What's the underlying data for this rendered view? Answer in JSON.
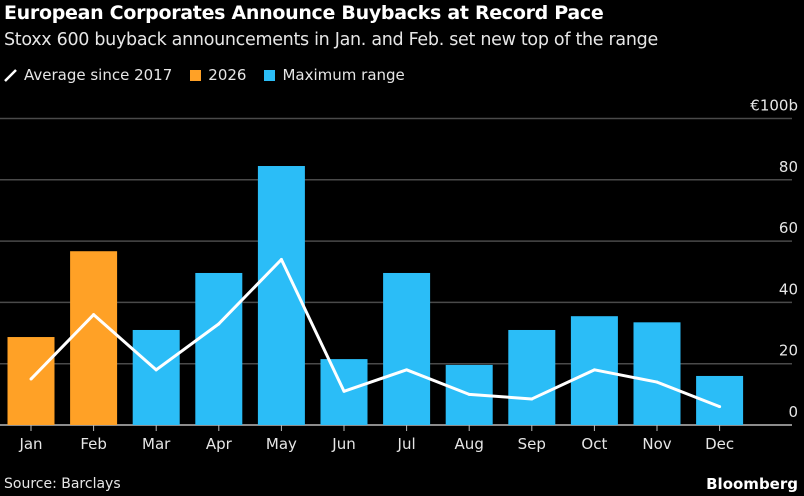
{
  "title": "European Corporates Announce Buybacks at Record Pace",
  "subtitle": "Stoxx 600 buyback announcements in Jan. and Feb. set new top of the range",
  "source": "Source: Barclays",
  "brand": "Bloomberg",
  "legend": [
    {
      "label": "Average since 2017",
      "color": "#ffffff",
      "shape": "line"
    },
    {
      "label": "2026",
      "color": "#ffa126"
    },
    {
      "label": "Maximum range",
      "color": "#2bbdf7"
    }
  ],
  "chart_data": {
    "type": "bar",
    "categories": [
      "Jan",
      "Feb",
      "Mar",
      "Apr",
      "May",
      "Jun",
      "Jul",
      "Aug",
      "Sep",
      "Oct",
      "Nov",
      "Dec"
    ],
    "bars": {
      "values": [
        28.7,
        56.7,
        31,
        49.6,
        84.5,
        21.5,
        49.6,
        19.6,
        31,
        35.5,
        33.5,
        16
      ],
      "series_by_category": [
        "2026",
        "2026",
        "Maximum range",
        "Maximum range",
        "Maximum range",
        "Maximum range",
        "Maximum range",
        "Maximum range",
        "Maximum range",
        "Maximum range",
        "Maximum range",
        "Maximum range"
      ]
    },
    "series": [
      {
        "name": "Average since 2017",
        "type": "line",
        "values": [
          15,
          36,
          18,
          33,
          54,
          11,
          18,
          10,
          8.5,
          18,
          14,
          6
        ]
      }
    ],
    "colors": {
      "2026": "#ffa126",
      "Maximum range": "#2bbdf7",
      "Average since 2017": "#ffffff",
      "grid": "#4a4a4a"
    },
    "ylim": [
      0,
      100
    ],
    "yticks": [
      "0",
      "20",
      "40",
      "60",
      "80",
      "€100b"
    ],
    "ytick_values": [
      0,
      20,
      40,
      60,
      80,
      100
    ],
    "yaxis_position": "right",
    "grid": true,
    "legend_position": "top-left"
  }
}
